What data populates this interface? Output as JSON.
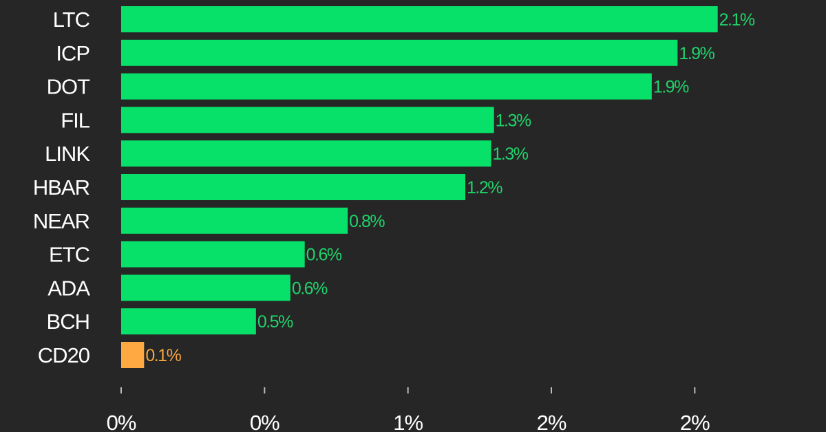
{
  "chart_data": {
    "type": "bar",
    "orientation": "horizontal",
    "title": "",
    "xlabel": "",
    "ylabel": "",
    "categories": [
      "LTC",
      "ICP",
      "DOT",
      "FIL",
      "LINK",
      "HBAR",
      "NEAR",
      "ETC",
      "ADA",
      "BCH",
      "CD20"
    ],
    "values": [
      2.08,
      1.94,
      1.85,
      1.3,
      1.29,
      1.2,
      0.79,
      0.64,
      0.59,
      0.47,
      0.08
    ],
    "value_labels": [
      "2.1%",
      "1.9%",
      "1.9%",
      "1.3%",
      "1.3%",
      "1.2%",
      "0.8%",
      "0.6%",
      "0.6%",
      "0.5%",
      "0.1%"
    ],
    "xlim": [
      0,
      2.4
    ],
    "x_ticks": [
      0,
      0.5,
      1.0,
      1.5,
      2.0
    ],
    "x_tick_labels": [
      "0%",
      "0%",
      "1%",
      "2%",
      "2%"
    ],
    "grid": false,
    "legend": "none",
    "colors": {
      "background": "#262626",
      "positive_bar": "#08e169",
      "positive_label": "#1fd36b",
      "index_bar": "#fea941",
      "index_label": "#f5a53f",
      "axis_text": "#ffffff",
      "tick_mark": "#bdbdbd"
    },
    "highlight_category": "CD20"
  }
}
